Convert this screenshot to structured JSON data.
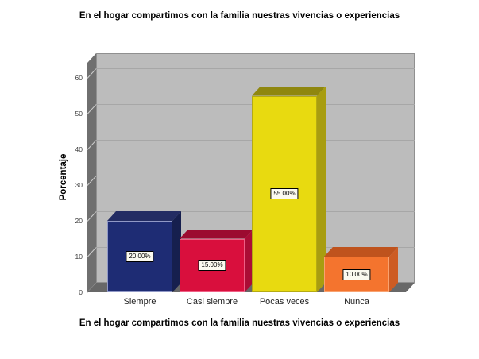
{
  "page": {
    "title_top": "En el hogar compartimos con la familia nuestras vivencias o experiencias",
    "title_bottom": "En el hogar compartimos con la familia nuestras vivencias o experiencias"
  },
  "chart_data": {
    "type": "bar",
    "projection": "3d",
    "title": "En el hogar compartimos con la familia nuestras vivencias o experiencias",
    "xlabel": "En el hogar compartimos con la familia nuestras vivencias o experiencias",
    "ylabel": "Porcentaje",
    "ylim": [
      0,
      60
    ],
    "yticks": [
      0,
      10,
      20,
      30,
      40,
      50,
      60
    ],
    "grid": true,
    "legend": "none",
    "categories": [
      "Siempre",
      "Casi siempre",
      "Pocas veces",
      "Nunca"
    ],
    "values": [
      20,
      15,
      55,
      10
    ],
    "bars": [
      {
        "label": "Siempre",
        "value": 20,
        "display_value": "20.00%",
        "color_front": "#1e2c74",
        "color_top": "#232c63",
        "color_side": "#161f4e",
        "color_edge": "#9098c6"
      },
      {
        "label": "Casi siempre",
        "value": 15,
        "display_value": "15.00%",
        "color_front": "#d90f3d",
        "color_top": "#9c0b30",
        "color_side": "#ab0d35",
        "color_edge": "#ef5f85"
      },
      {
        "label": "Pocas veces",
        "value": 55,
        "display_value": "55.00%",
        "color_front": "#e8da10",
        "color_top": "#8f870f",
        "color_side": "#a89d10",
        "color_edge": "#b5ab12"
      },
      {
        "label": "Nunca",
        "value": 10,
        "display_value": "10.00%",
        "color_front": "#f4742e",
        "color_top": "#bf531d",
        "color_side": "#cd5c23",
        "color_edge": "#f8a270"
      }
    ],
    "colors": {
      "back_wall": "#bcbcbc",
      "back_wall_edge": "#909090",
      "gridline": "#a7a7a7",
      "side_wall": "#6f6f6f",
      "floor": "#686868",
      "wall_tick": "#cfcfcf",
      "label_box_bg": "#fbfaf0",
      "label_box_border": "#000000"
    }
  }
}
